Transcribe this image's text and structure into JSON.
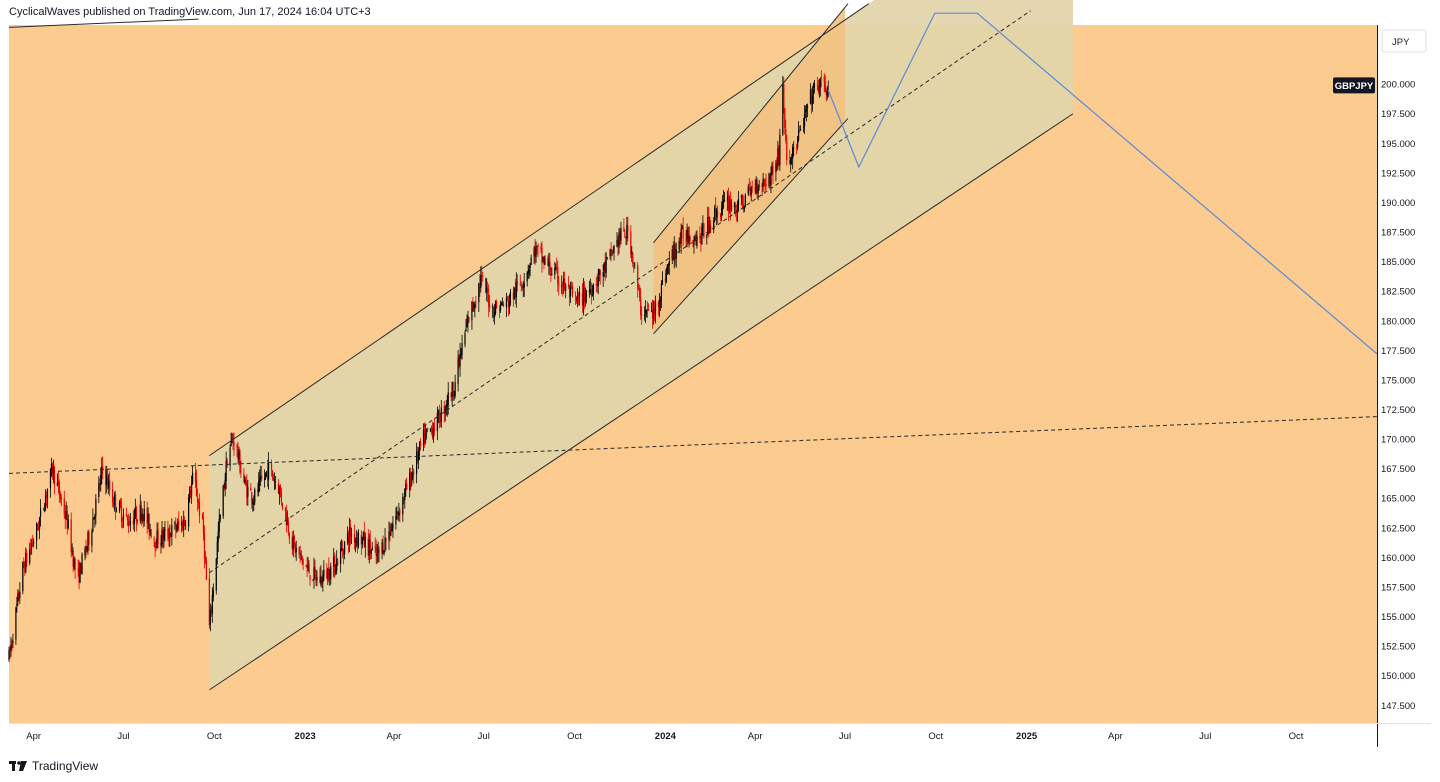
{
  "header": {
    "text": "CyclicalWaves published on TradingView.com, Jun 17, 2024 16:04 UTC+3"
  },
  "footer": {
    "brand": "TradingView",
    "logo_icon": "tradingview-logo-icon"
  },
  "colors": {
    "background": "#fccb8f",
    "channel_fill": "#e3d5ab",
    "inner_channel_fill": "#f2c281",
    "up_candle": "#000000",
    "down_candle": "#e00000",
    "projection_line": "#5b8ad6",
    "trend_lines": "#2a2a2a"
  },
  "chart_data": {
    "type": "candlestick",
    "symbol": "GBPJPY",
    "currency": "JPY",
    "y_range": [
      146,
      205
    ],
    "y_ticks": [
      "147.500",
      "150.000",
      "152.500",
      "155.000",
      "157.500",
      "160.000",
      "162.500",
      "165.000",
      "167.500",
      "170.000",
      "172.500",
      "175.000",
      "177.500",
      "180.000",
      "182.500",
      "185.000",
      "187.500",
      "190.000",
      "192.500",
      "195.000",
      "197.500",
      "200.000"
    ],
    "x_range": [
      "2022-03-07",
      "2025-12-22"
    ],
    "x_ticks": [
      {
        "label": "Apr",
        "date": "2022-04-01"
      },
      {
        "label": "Jul",
        "date": "2022-07-01"
      },
      {
        "label": "Oct",
        "date": "2022-10-01"
      },
      {
        "label": "2023",
        "date": "2023-01-01",
        "bold": true
      },
      {
        "label": "Apr",
        "date": "2023-04-01"
      },
      {
        "label": "Jul",
        "date": "2023-07-01"
      },
      {
        "label": "Oct",
        "date": "2023-10-01"
      },
      {
        "label": "2024",
        "date": "2024-01-01",
        "bold": true
      },
      {
        "label": "Apr",
        "date": "2024-04-01"
      },
      {
        "label": "Jul",
        "date": "2024-07-01"
      },
      {
        "label": "Oct",
        "date": "2024-10-01"
      },
      {
        "label": "2025",
        "date": "2025-01-01",
        "bold": true
      },
      {
        "label": "Apr",
        "date": "2025-04-01"
      },
      {
        "label": "Jul",
        "date": "2025-07-01"
      },
      {
        "label": "Oct",
        "date": "2025-10-01"
      }
    ],
    "last_price_label": "GBPJPY",
    "last_price": 199.9,
    "price_path": [
      [
        "2022-03-07",
        151.5
      ],
      [
        "2022-03-21",
        159.0
      ],
      [
        "2022-04-05",
        162.5
      ],
      [
        "2022-04-20",
        167.5
      ],
      [
        "2022-05-05",
        163.0
      ],
      [
        "2022-05-15",
        158.0
      ],
      [
        "2022-05-28",
        162.0
      ],
      [
        "2022-06-10",
        167.5
      ],
      [
        "2022-06-20",
        165.0
      ],
      [
        "2022-07-05",
        163.0
      ],
      [
        "2022-07-20",
        164.0
      ],
      [
        "2022-08-02",
        161.5
      ],
      [
        "2022-08-15",
        162.0
      ],
      [
        "2022-09-01",
        163.0
      ],
      [
        "2022-09-10",
        167.0
      ],
      [
        "2022-09-20",
        162.0
      ],
      [
        "2022-09-26",
        154.0
      ],
      [
        "2022-10-05",
        162.0
      ],
      [
        "2022-10-15",
        169.0
      ],
      [
        "2022-10-21",
        170.0
      ],
      [
        "2022-11-01",
        166.0
      ],
      [
        "2022-11-10",
        165.0
      ],
      [
        "2022-11-25",
        167.5
      ],
      [
        "2022-12-05",
        166.0
      ],
      [
        "2022-12-20",
        161.0
      ],
      [
        "2023-01-03",
        159.0
      ],
      [
        "2023-01-15",
        158.0
      ],
      [
        "2023-02-01",
        159.5
      ],
      [
        "2023-02-15",
        162.0
      ],
      [
        "2023-02-28",
        161.5
      ],
      [
        "2023-03-15",
        160.0
      ],
      [
        "2023-04-01",
        163.0
      ],
      [
        "2023-04-15",
        166.0
      ],
      [
        "2023-05-01",
        170.0
      ],
      [
        "2023-05-15",
        171.5
      ],
      [
        "2023-06-01",
        174.5
      ],
      [
        "2023-06-15",
        180.0
      ],
      [
        "2023-06-28",
        183.5
      ],
      [
        "2023-07-10",
        181.0
      ],
      [
        "2023-07-25",
        181.5
      ],
      [
        "2023-08-10",
        183.5
      ],
      [
        "2023-08-22",
        186.0
      ],
      [
        "2023-09-05",
        184.5
      ],
      [
        "2023-09-20",
        183.0
      ],
      [
        "2023-10-03",
        181.5
      ],
      [
        "2023-10-15",
        182.5
      ],
      [
        "2023-11-01",
        184.5
      ],
      [
        "2023-11-15",
        187.0
      ],
      [
        "2023-11-25",
        187.5
      ],
      [
        "2023-12-07",
        181.0
      ],
      [
        "2023-12-20",
        180.5
      ],
      [
        "2024-01-05",
        185.0
      ],
      [
        "2024-01-20",
        187.5
      ],
      [
        "2024-02-05",
        187.0
      ],
      [
        "2024-02-20",
        189.0
      ],
      [
        "2024-03-05",
        190.0
      ],
      [
        "2024-03-15",
        189.5
      ],
      [
        "2024-04-01",
        191.5
      ],
      [
        "2024-04-15",
        192.0
      ],
      [
        "2024-04-25",
        194.0
      ],
      [
        "2024-04-29",
        200.0
      ],
      [
        "2024-05-03",
        193.0
      ],
      [
        "2024-05-15",
        195.5
      ],
      [
        "2024-05-28",
        199.0
      ],
      [
        "2024-06-05",
        200.0
      ],
      [
        "2024-06-14",
        199.5
      ]
    ],
    "outer_channel": {
      "upper": [
        [
          "2022-09-26",
          168.6
        ],
        [
          "2024-07-25",
          206.8
        ]
      ],
      "lower": [
        [
          "2022-09-26",
          148.8
        ],
        [
          "2025-02-17",
          197.5
        ]
      ],
      "median": [
        [
          "2022-09-26",
          158.7
        ],
        [
          "2025-01-05",
          206.2
        ]
      ]
    },
    "inner_channel": {
      "upper": [
        [
          "2023-12-20",
          186.6
        ],
        [
          "2024-07-04",
          206.8
        ]
      ],
      "lower": [
        [
          "2023-12-20",
          178.9
        ],
        [
          "2024-07-04",
          197.1
        ]
      ]
    },
    "inner_shading_right": "2024-07-01",
    "outer_shading_right": "2025-02-17",
    "dashed_long_line": [
      [
        "2022-03-07",
        167.1
      ],
      [
        "2025-12-22",
        171.9
      ]
    ],
    "top_left_line": [
      [
        "2022-03-07",
        204.8
      ],
      [
        "2022-09-15",
        205.5
      ]
    ],
    "projection": [
      [
        "2024-06-14",
        199.5
      ],
      [
        "2024-07-15",
        193.0
      ],
      [
        "2024-09-30",
        206.0
      ],
      [
        "2024-11-12",
        206.0
      ],
      [
        "2025-12-22",
        177.2
      ]
    ]
  }
}
